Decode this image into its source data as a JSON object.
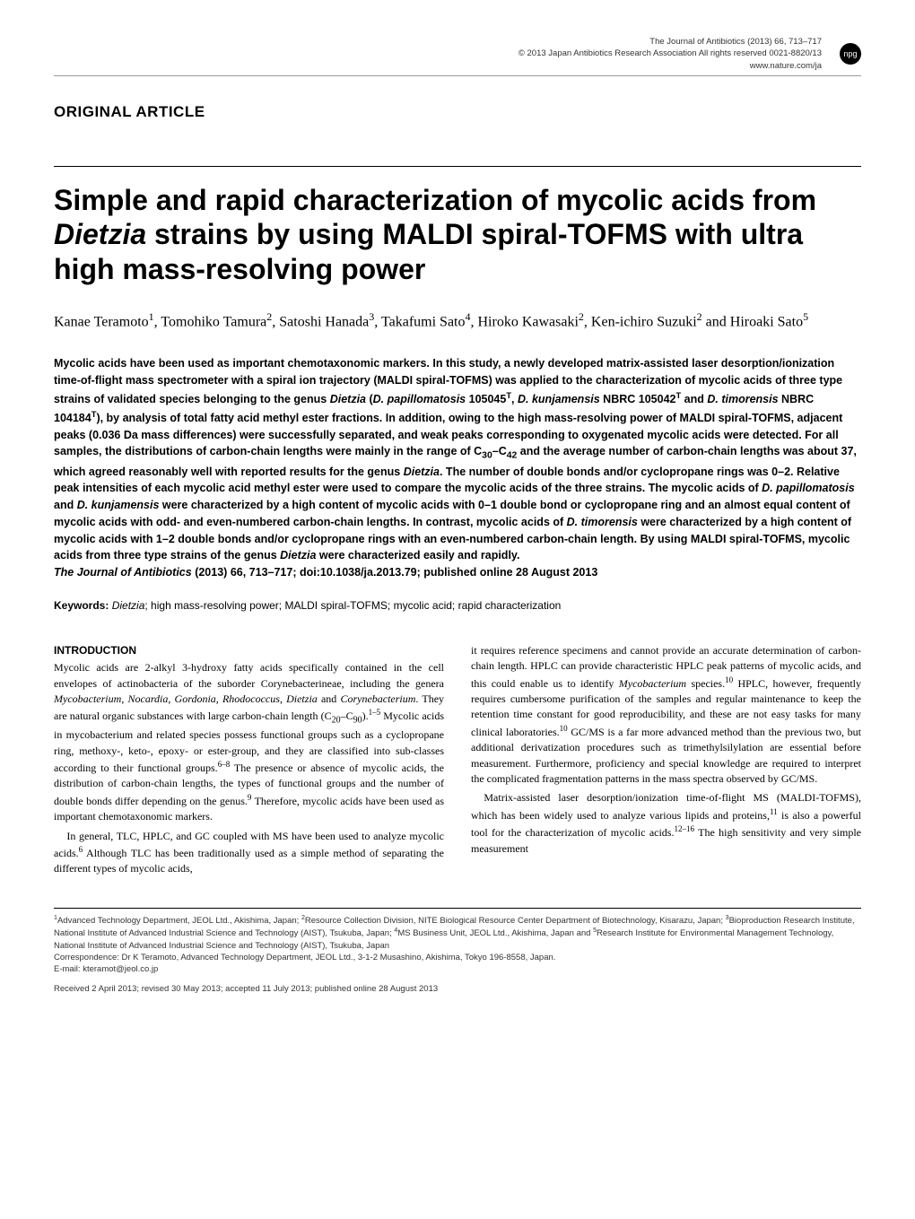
{
  "header": {
    "journal": "The Journal of Antibiotics (2013) 66, 713–717",
    "copyright": "© 2013 Japan Antibiotics Research Association   All rights reserved 0021-8820/13",
    "url": "www.nature.com/ja",
    "badge": "npg"
  },
  "article_type": "ORIGINAL ARTICLE",
  "title_html": "Simple and rapid characterization of mycolic acids from <span class=\"italic\">Dietzia</span> strains by using MALDI spiral-TOFMS with ultra high mass-resolving power",
  "authors_html": "Kanae Teramoto<sup>1</sup>, Tomohiko Tamura<sup>2</sup>, Satoshi Hanada<sup>3</sup>, Takafumi Sato<sup>4</sup>, Hiroko Kawasaki<sup>2</sup>, Ken-ichiro Suzuki<sup>2</sup> and Hiroaki Sato<sup>5</sup>",
  "abstract_html": "Mycolic acids have been used as important chemotaxonomic markers. In this study, a newly developed matrix-assisted laser desorption/ionization time-of-flight mass spectrometer with a spiral ion trajectory (MALDI spiral-TOFMS) was applied to the characterization of mycolic acids of three type strains of validated species belonging to the genus <span class=\"italic\">Dietzia</span> (<span class=\"italic\">D. papillomatosis</span> 105045<sup>T</sup>, <span class=\"italic\">D. kunjamensis</span> NBRC 105042<sup>T</sup> and <span class=\"italic\">D. timorensis</span> NBRC 104184<sup>T</sup>), by analysis of total fatty acid methyl ester fractions. In addition, owing to the high mass-resolving power of MALDI spiral-TOFMS, adjacent peaks (0.036 Da mass differences) were successfully separated, and weak peaks corresponding to oxygenated mycolic acids were detected. For all samples, the distributions of carbon-chain lengths were mainly in the range of C<sub>30</sub>–C<sub>42</sub> and the average number of carbon-chain lengths was about 37, which agreed reasonably well with reported results for the genus <span class=\"italic\">Dietzia</span>. The number of double bonds and/or cyclopropane rings was 0–2. Relative peak intensities of each mycolic acid methyl ester were used to compare the mycolic acids of the three strains. The mycolic acids of <span class=\"italic\">D. papillomatosis</span> and <span class=\"italic\">D. kunjamensis</span> were characterized by a high content of mycolic acids with 0–1 double bond or cyclopropane ring and an almost equal content of mycolic acids with odd- and even-numbered carbon-chain lengths. In contrast, mycolic acids of <span class=\"italic\">D. timorensis</span> were characterized by a high content of mycolic acids with 1–2 double bonds and/or cyclopropane rings with an even-numbered carbon-chain length. By using MALDI spiral-TOFMS, mycolic acids from three type strains of the genus <span class=\"italic\">Dietzia</span> were characterized easily and rapidly.<br><span class=\"italic\">The Journal of Antibiotics</span> (2013) <b>66,</b> 713–717; doi:10.1038/ja.2013.79; published online 28 August 2013",
  "keywords": {
    "label": "Keywords:",
    "text_html": " <span class=\"italic\">Dietzia</span>; high mass-resolving power; MALDI spiral-TOFMS; mycolic acid; rapid characterization"
  },
  "intro": {
    "heading": "INTRODUCTION",
    "col1_html": "<p>Mycolic acids are 2-alkyl 3-hydroxy fatty acids specifically contained in the cell envelopes of actinobacteria of the suborder Corynebacterineae, including the genera <span class=\"italic\">Mycobacterium</span>, <span class=\"italic\">Nocardia</span>, <span class=\"italic\">Gordonia</span>, <span class=\"italic\">Rhodococcus</span>, <span class=\"italic\">Dietzia</span> and <span class=\"italic\">Corynebacterium</span>. They are natural organic substances with large carbon-chain length (C<sub>20</sub>–C<sub>90</sub>).<sup>1–5</sup> Mycolic acids in mycobacterium and related species possess functional groups such as a cyclopropane ring, methoxy-, keto-, epoxy- or ester-group, and they are classified into sub-classes according to their functional groups.<sup>6–8</sup> The presence or absence of mycolic acids, the distribution of carbon-chain lengths, the types of functional groups and the number of double bonds differ depending on the genus.<sup>9</sup> Therefore, mycolic acids have been used as important chemotaxonomic markers.</p><p class=\"indent\">In general, TLC, HPLC, and GC coupled with MS have been used to analyze mycolic acids.<sup>6</sup> Although TLC has been traditionally used as a simple method of separating the different types of mycolic acids,</p>",
    "col2_html": "<p>it requires reference specimens and cannot provide an accurate determination of carbon-chain length. HPLC can provide characteristic HPLC peak patterns of mycolic acids, and this could enable us to identify <span class=\"italic\">Mycobacterium</span> species.<sup>10</sup> HPLC, however, frequently requires cumbersome purification of the samples and regular maintenance to keep the retention time constant for good reproducibility, and these are not easy tasks for many clinical laboratories.<sup>10</sup> GC/MS is a far more advanced method than the previous two, but additional derivatization procedures such as trimethylsilylation are essential before measurement. Furthermore, proficiency and special knowledge are required to interpret the complicated fragmentation patterns in the mass spectra observed by GC/MS.</p><p class=\"indent\">Matrix-assisted laser desorption/ionization time-of-flight MS (MALDI-TOFMS), which has been widely used to analyze various lipids and proteins,<sup>11</sup> is also a powerful tool for the characterization of mycolic acids.<sup>12–16</sup> The high sensitivity and very simple measurement</p>"
  },
  "affiliations_html": "<sup>1</sup>Advanced Technology Department, JEOL Ltd., Akishima, Japan; <sup>2</sup>Resource Collection Division, NITE Biological Resource Center Department of Biotechnology, Kisarazu, Japan; <sup>3</sup>Bioproduction Research Institute, National Institute of Advanced Industrial Science and Technology (AIST), Tsukuba, Japan; <sup>4</sup>MS Business Unit, JEOL Ltd., Akishima, Japan and <sup>5</sup>Research Institute for Environmental Management Technology, National Institute of Advanced Industrial Science and Technology (AIST), Tsukuba, Japan<br>Correspondence: Dr K Teramoto, Advanced Technology Department, JEOL Ltd., 3-1-2 Musashino, Akishima, Tokyo 196-8558, Japan.<br>E-mail: kteramot@jeol.co.jp",
  "dates": "Received 2 April 2013; revised 30 May 2013; accepted 11 July 2013; published online 28 August 2013",
  "colors": {
    "text": "#000000",
    "header_text": "#333333",
    "rule": "#000000",
    "background": "#ffffff"
  },
  "fonts": {
    "sans": "Arial, Helvetica, sans-serif",
    "serif": "Georgia, 'Times New Roman', serif",
    "title_size_pt": 24,
    "body_size_pt": 9,
    "abstract_size_pt": 9.5
  }
}
